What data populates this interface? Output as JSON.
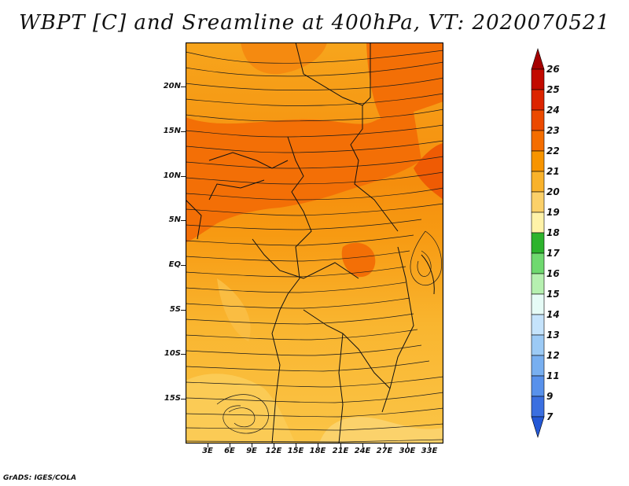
{
  "title": "WBPT [C] and Sreamline at 400hPa, VT: 2020070521",
  "credit": "GrADS: IGES/COLA",
  "lat_labels": [
    "20N",
    "15N",
    "10N",
    "5N",
    "EQ",
    "5S",
    "10S",
    "15S"
  ],
  "lon_labels": [
    "3E",
    "6E",
    "9E",
    "12E",
    "15E",
    "18E",
    "21E",
    "24E",
    "27E",
    "30E",
    "33E"
  ],
  "colorbar": {
    "labels": [
      "26",
      "25",
      "24",
      "23",
      "22",
      "21",
      "20",
      "19",
      "18",
      "17",
      "16",
      "15",
      "14",
      "13",
      "12",
      "11",
      "9",
      "7"
    ],
    "colors": [
      "#a50000",
      "#c20a00",
      "#dc2400",
      "#ec4a00",
      "#f46d00",
      "#f79400",
      "#f9b22b",
      "#fbd069",
      "#fff2a8",
      "#2db32d",
      "#6fd96f",
      "#b6f0b0",
      "#e6fbf6",
      "#c5e3fb",
      "#9ccaf5",
      "#78aff0",
      "#5891eb",
      "#3b6fe0",
      "#2458d6"
    ]
  }
}
